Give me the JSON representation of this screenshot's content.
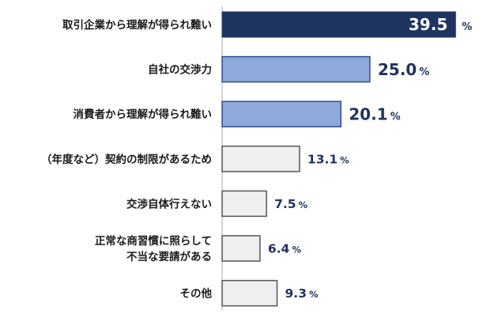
{
  "chart_data": {
    "type": "bar",
    "orientation": "horizontal",
    "categories": [
      [
        "取引企業から理解が得られ難い"
      ],
      [
        "自社の交渉力"
      ],
      [
        "消費者から理解が得られ難い"
      ],
      [
        "（年度など）契約の制限があるため"
      ],
      [
        "交渉自体行えない"
      ],
      [
        "正常な商習慣に照らして",
        "不当な要請がある"
      ],
      [
        "その他"
      ]
    ],
    "values": [
      39.5,
      25.0,
      20.1,
      13.1,
      7.5,
      6.4,
      9.3
    ],
    "value_labels": [
      "39.5",
      "25.0",
      "20.1",
      "13.1",
      "7.5",
      "6.4",
      "9.3"
    ],
    "unit": "%",
    "xlim": [
      0,
      40
    ],
    "grid": false,
    "legend": "none",
    "colors": {
      "top_fill": "#1f3461",
      "mid_fill": "#8eaadb",
      "mid_stroke": "#2f4f8f",
      "low_fill": "#efefef",
      "low_stroke": "#555555",
      "value_text": "#1f3461",
      "value_text_on_bar": "#ffffff",
      "axis": "#aaaaaa"
    }
  }
}
